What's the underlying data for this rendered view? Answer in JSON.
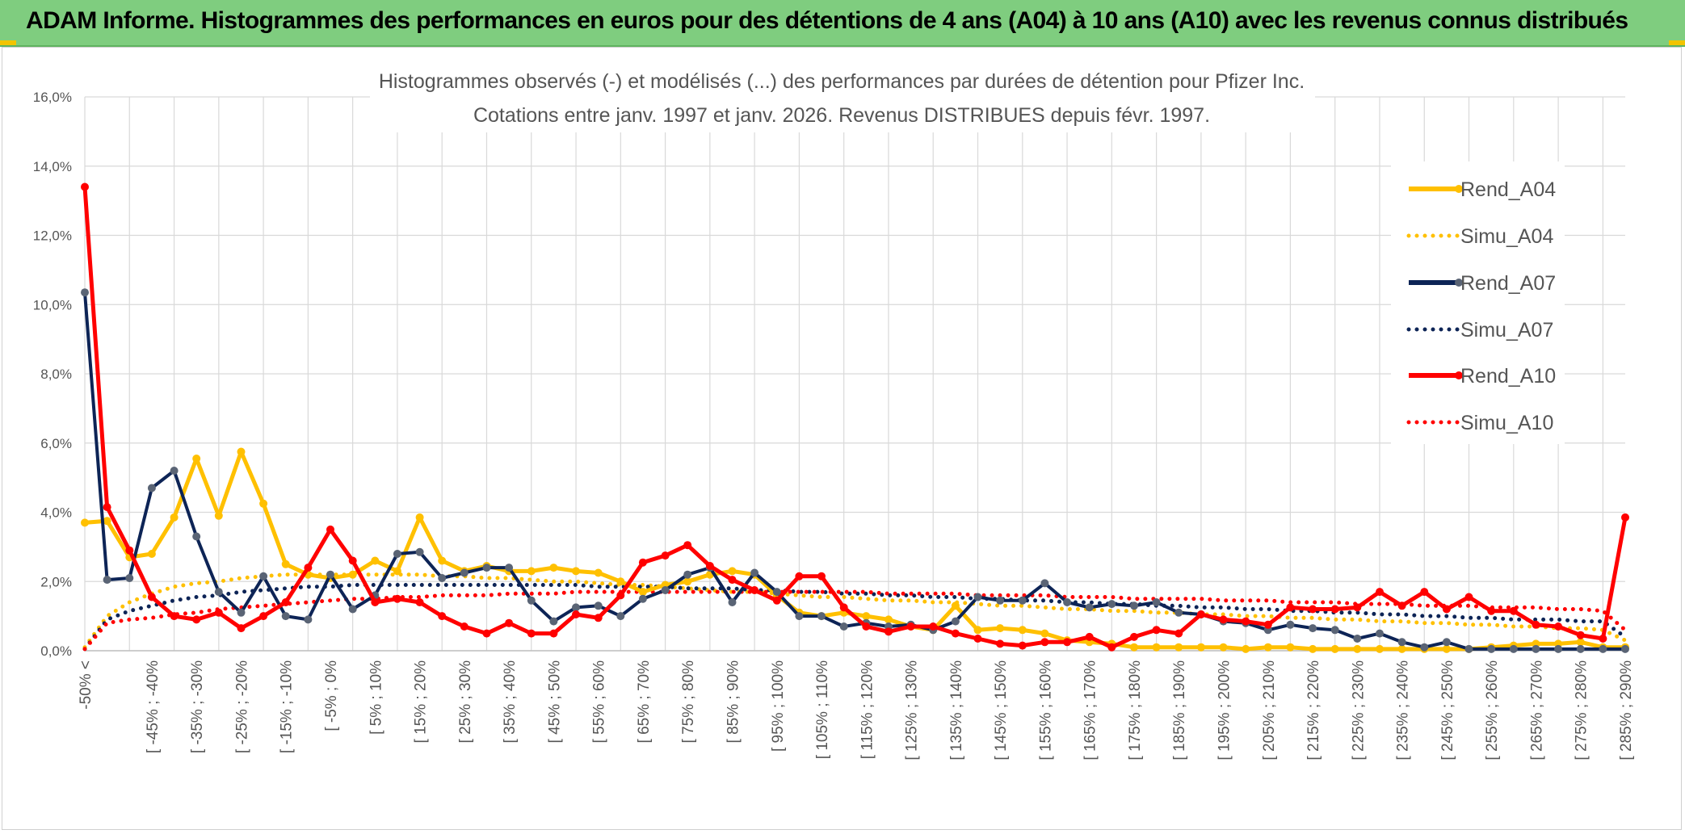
{
  "banner": {
    "title": "ADAM Informe. Histogrammes des performances en euros pour des détentions de 4 ans (A04) à 10 ans (A10) avec les revenus connus distribués"
  },
  "chart_data": {
    "type": "line",
    "title": "Histogrammes observés (-) et modélisés (...) des performances par durées de détention pour Pfizer Inc.",
    "subtitle": "Cotations entre janv. 1997 et janv. 2026. Revenus DISTRIBUES depuis févr. 1997.",
    "xlabel": "",
    "ylabel": "",
    "ylim": [
      0,
      16
    ],
    "y_unit": "%",
    "y_ticks": [
      "0,0%",
      "2,0%",
      "4,0%",
      "6,0%",
      "8,0%",
      "10,0%",
      "12,0%",
      "14,0%",
      "16,0%"
    ],
    "grid": true,
    "legend_position": "right",
    "x_tick_labels": [
      "-50% <",
      "[ -45% ; -40%",
      "[ -35% ; -30%",
      "[ -25% ; -20%",
      "[ -15% ; -10%",
      "[ -5% ; 0%",
      "[ 5% ; 10%",
      "[ 15% ; 20%",
      "[ 25% ; 30%",
      "[ 35% ; 40%",
      "[ 45% ; 50%",
      "[ 55% ; 60%",
      "[ 65% ; 70%",
      "[ 75% ; 80%",
      "[ 85% ; 90%",
      "[ 95% ; 100%",
      "[ 105% ; 110%",
      "[ 115% ; 120%",
      "[ 125% ; 130%",
      "[ 135% ; 140%",
      "[ 145% ; 150%",
      "[ 155% ; 160%",
      "[ 165% ; 170%",
      "[ 175% ; 180%",
      "[ 185% ; 190%",
      "[ 195% ; 200%",
      "[ 205% ; 210%",
      "[ 215% ; 220%",
      "[ 225% ; 230%",
      "[ 235% ; 240%",
      "[ 245% ; 250%",
      "[ 255% ; 260%",
      "[ 265% ; 270%",
      "[ 275% ; 280%",
      "[ 285% ; 290%"
    ],
    "categories_count": 70,
    "series": [
      {
        "name": "Rend_A04",
        "style": "solid",
        "color": "#ffc000",
        "values": [
          3.7,
          3.75,
          2.7,
          2.8,
          3.85,
          5.55,
          3.9,
          5.75,
          4.25,
          2.5,
          2.2,
          2.1,
          2.2,
          2.6,
          2.3,
          3.85,
          2.6,
          2.3,
          2.45,
          2.3,
          2.3,
          2.4,
          2.3,
          2.25,
          2.0,
          1.7,
          1.9,
          2.0,
          2.2,
          2.3,
          2.2,
          1.6,
          1.1,
          1.0,
          1.1,
          1.0,
          0.9,
          0.7,
          0.6,
          1.3,
          0.6,
          0.65,
          0.6,
          0.5,
          0.3,
          0.25,
          0.2,
          0.1,
          0.1,
          0.1,
          0.1,
          0.1,
          0.05,
          0.1,
          0.1,
          0.05,
          0.05,
          0.05,
          0.05,
          0.05,
          0.05,
          0.05,
          0.05,
          0.1,
          0.15,
          0.2,
          0.2,
          0.25,
          0.1,
          0.1
        ]
      },
      {
        "name": "Simu_A04",
        "style": "dotted",
        "color": "#ffc000",
        "values": [
          0.1,
          1.0,
          1.4,
          1.65,
          1.85,
          1.95,
          2.0,
          2.1,
          2.15,
          2.2,
          2.2,
          2.2,
          2.2,
          2.2,
          2.2,
          2.2,
          2.15,
          2.15,
          2.1,
          2.1,
          2.05,
          2.0,
          2.0,
          1.95,
          1.9,
          1.9,
          1.85,
          1.8,
          1.75,
          1.7,
          1.7,
          1.65,
          1.6,
          1.55,
          1.55,
          1.5,
          1.45,
          1.45,
          1.4,
          1.4,
          1.35,
          1.3,
          1.3,
          1.25,
          1.2,
          1.2,
          1.15,
          1.15,
          1.1,
          1.1,
          1.05,
          1.05,
          1.0,
          1.0,
          0.95,
          0.95,
          0.9,
          0.9,
          0.85,
          0.85,
          0.8,
          0.8,
          0.75,
          0.75,
          0.7,
          0.7,
          0.65,
          0.65,
          0.6,
          0.3
        ]
      },
      {
        "name": "Rend_A07",
        "style": "solid",
        "color": "#0d2456",
        "values": [
          10.35,
          2.05,
          2.1,
          4.7,
          5.2,
          3.3,
          1.7,
          1.1,
          2.15,
          1.0,
          0.9,
          2.2,
          1.2,
          1.6,
          2.8,
          2.85,
          2.1,
          2.25,
          2.4,
          2.4,
          1.45,
          0.85,
          1.25,
          1.3,
          1.0,
          1.5,
          1.75,
          2.2,
          2.4,
          1.4,
          2.25,
          1.7,
          1.0,
          1.0,
          0.7,
          0.8,
          0.7,
          0.75,
          0.6,
          0.85,
          1.55,
          1.45,
          1.45,
          1.95,
          1.4,
          1.25,
          1.35,
          1.3,
          1.4,
          1.1,
          1.05,
          0.85,
          0.8,
          0.6,
          0.75,
          0.65,
          0.6,
          0.35,
          0.5,
          0.25,
          0.1,
          0.25,
          0.05,
          0.05,
          0.05,
          0.05,
          0.05,
          0.05,
          0.05,
          0.05
        ]
      },
      {
        "name": "Simu_A07",
        "style": "dotted",
        "color": "#0d2456",
        "values": [
          0.05,
          0.9,
          1.15,
          1.3,
          1.45,
          1.55,
          1.6,
          1.7,
          1.75,
          1.8,
          1.85,
          1.85,
          1.9,
          1.9,
          1.9,
          1.9,
          1.9,
          1.9,
          1.9,
          1.9,
          1.9,
          1.9,
          1.9,
          1.85,
          1.85,
          1.85,
          1.85,
          1.8,
          1.8,
          1.8,
          1.75,
          1.75,
          1.7,
          1.7,
          1.65,
          1.65,
          1.6,
          1.6,
          1.55,
          1.55,
          1.5,
          1.5,
          1.45,
          1.45,
          1.4,
          1.4,
          1.35,
          1.35,
          1.3,
          1.3,
          1.25,
          1.25,
          1.2,
          1.2,
          1.15,
          1.15,
          1.1,
          1.1,
          1.05,
          1.05,
          1.0,
          1.0,
          0.95,
          0.95,
          0.9,
          0.9,
          0.9,
          0.85,
          0.85,
          0.4
        ]
      },
      {
        "name": "Rend_A10",
        "style": "solid",
        "color": "#ff0000",
        "values": [
          13.4,
          4.15,
          2.9,
          1.55,
          1.0,
          0.9,
          1.1,
          0.65,
          1.0,
          1.4,
          2.4,
          3.5,
          2.6,
          1.4,
          1.5,
          1.4,
          1.0,
          0.7,
          0.5,
          0.8,
          0.5,
          0.5,
          1.05,
          0.95,
          1.6,
          2.55,
          2.75,
          3.05,
          2.45,
          2.05,
          1.75,
          1.45,
          2.15,
          2.15,
          1.25,
          0.7,
          0.55,
          0.7,
          0.7,
          0.5,
          0.35,
          0.2,
          0.15,
          0.25,
          0.25,
          0.4,
          0.1,
          0.4,
          0.6,
          0.5,
          1.05,
          0.9,
          0.85,
          0.75,
          1.25,
          1.2,
          1.2,
          1.25,
          1.7,
          1.3,
          1.7,
          1.2,
          1.55,
          1.15,
          1.15,
          0.75,
          0.7,
          0.45,
          0.35,
          3.85
        ]
      },
      {
        "name": "Simu_A10",
        "style": "dotted",
        "color": "#ff0000",
        "values": [
          0.05,
          0.8,
          0.9,
          0.95,
          1.05,
          1.1,
          1.2,
          1.25,
          1.3,
          1.35,
          1.4,
          1.45,
          1.5,
          1.5,
          1.55,
          1.55,
          1.6,
          1.6,
          1.6,
          1.65,
          1.65,
          1.65,
          1.7,
          1.7,
          1.7,
          1.7,
          1.7,
          1.7,
          1.7,
          1.7,
          1.7,
          1.7,
          1.7,
          1.7,
          1.7,
          1.7,
          1.65,
          1.65,
          1.65,
          1.65,
          1.6,
          1.6,
          1.6,
          1.6,
          1.55,
          1.55,
          1.55,
          1.5,
          1.5,
          1.5,
          1.5,
          1.45,
          1.45,
          1.45,
          1.4,
          1.4,
          1.4,
          1.35,
          1.35,
          1.35,
          1.3,
          1.3,
          1.3,
          1.25,
          1.25,
          1.25,
          1.2,
          1.2,
          1.15,
          0.6
        ]
      }
    ]
  }
}
